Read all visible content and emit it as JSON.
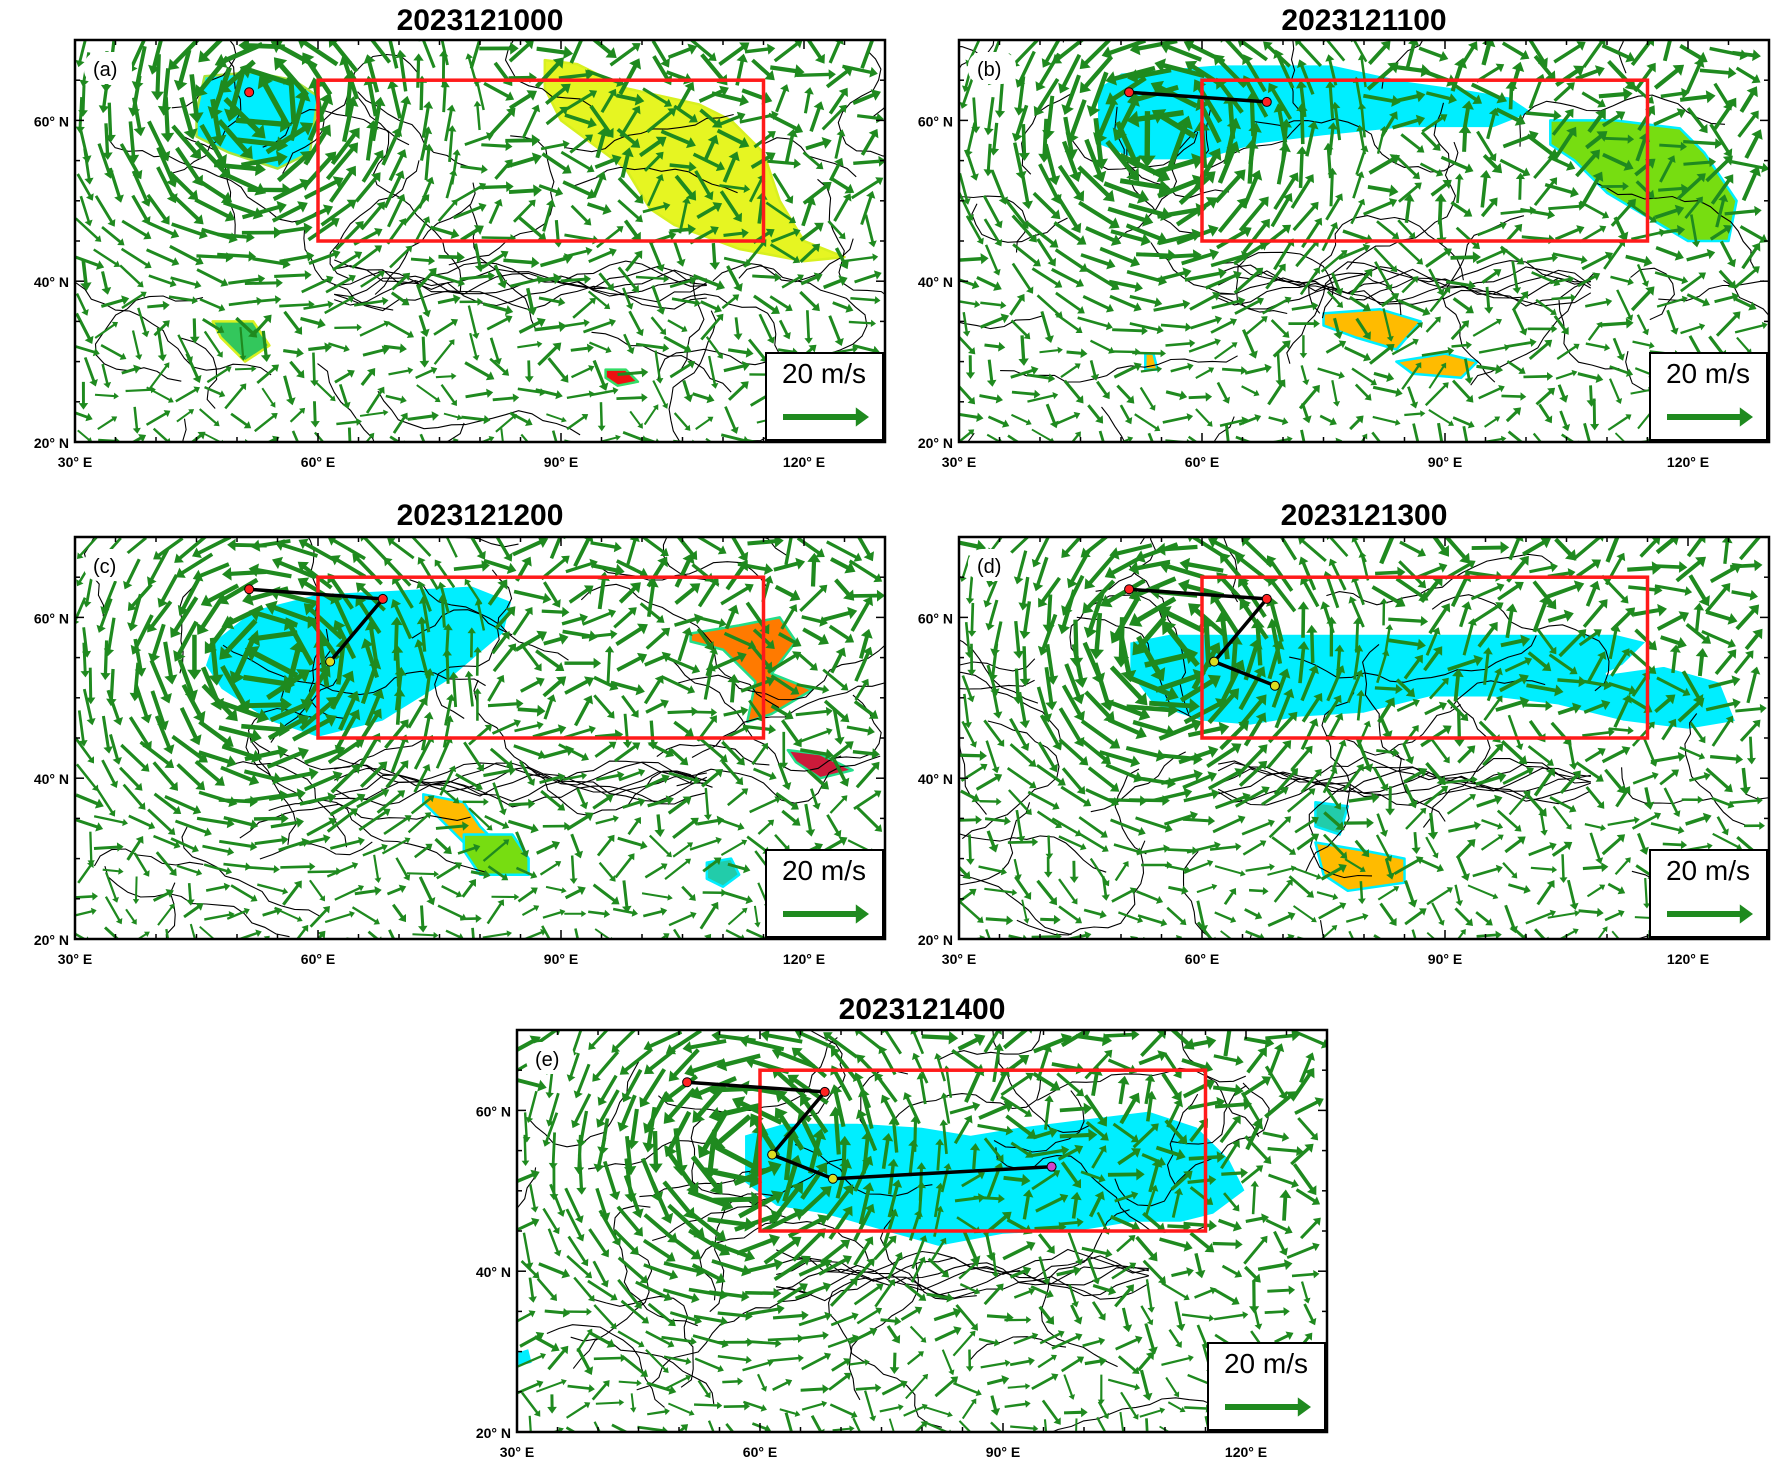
{
  "figure": {
    "arrow_color": "#1f8a1f",
    "domain_box_color": "#ff1a1a",
    "track_color": "#000000",
    "contour_color": "#000000"
  },
  "map": {
    "lon_min": 30,
    "lon_max": 130,
    "lat_min": 20,
    "lat_max": 70,
    "x_ticks": [
      30,
      60,
      90,
      120
    ],
    "x_tick_labels": [
      "30° E",
      "60° E",
      "90° E",
      "120° E"
    ],
    "y_ticks": [
      20,
      40,
      60
    ],
    "y_tick_labels": [
      "20° N",
      "40° N",
      "60° N"
    ],
    "study_box": {
      "lon": [
        60,
        115
      ],
      "lat": [
        45,
        65
      ]
    }
  },
  "reference_vector": {
    "label": "20 m/s",
    "speed": 20
  },
  "panels": [
    {
      "id": "a",
      "letter": "(a)",
      "title": "2023121000",
      "track": [
        {
          "lon": 51.5,
          "lat": 63.5,
          "color": "#ff2222"
        }
      ],
      "regions": [
        {
          "color": "#00eeff",
          "edge": "#a8e23a",
          "poly": [
            [
              45,
              61
            ],
            [
              46,
              65.5
            ],
            [
              52,
              66
            ],
            [
              57,
              65
            ],
            [
              60,
              63
            ],
            [
              59,
              56
            ],
            [
              55,
              54
            ],
            [
              49,
              56
            ],
            [
              45,
              58
            ]
          ]
        },
        {
          "color": "#e6f522",
          "edge": "#d8f020",
          "poly": [
            [
              88,
              67.5
            ],
            [
              92,
              67
            ],
            [
              98,
              64
            ],
            [
              107,
              62
            ],
            [
              111,
              60
            ],
            [
              115,
              56
            ],
            [
              117,
              50
            ],
            [
              120,
              45
            ],
            [
              125,
              43
            ],
            [
              120,
              42.5
            ],
            [
              112,
              44
            ],
            [
              104,
              47
            ],
            [
              101,
              49
            ],
            [
              98,
              54
            ],
            [
              94,
              57
            ],
            [
              90,
              60
            ],
            [
              88,
              64
            ]
          ]
        },
        {
          "color": "#33c75c",
          "edge": "#d8f020",
          "poly": [
            [
              47,
              35
            ],
            [
              52,
              35
            ],
            [
              54,
              32
            ],
            [
              51,
              30
            ],
            [
              48,
              33
            ]
          ]
        },
        {
          "color": "#ee1111",
          "edge": "#33dd66",
          "poly": [
            [
              95.5,
              29
            ],
            [
              98,
              29
            ],
            [
              99.5,
              27.5
            ],
            [
              97,
              27
            ],
            [
              95.5,
              28
            ]
          ]
        }
      ]
    },
    {
      "id": "b",
      "letter": "(b)",
      "title": "2023121100",
      "track": [
        {
          "lon": 51,
          "lat": 63.5,
          "color": "#ff2222"
        },
        {
          "lon": 68,
          "lat": 62.3,
          "color": "#ff2222"
        }
      ],
      "regions": [
        {
          "color": "#00eeff",
          "edge": "#ffffff",
          "poly": [
            [
              47,
              64
            ],
            [
              50,
              66
            ],
            [
              62,
              67
            ],
            [
              76,
              67
            ],
            [
              85,
              65
            ],
            [
              92,
              64
            ],
            [
              98,
              63
            ],
            [
              101,
              61
            ],
            [
              96,
              59
            ],
            [
              85,
              59
            ],
            [
              75,
              58
            ],
            [
              67,
              57
            ],
            [
              60,
              55
            ],
            [
              52,
              55
            ],
            [
              47,
              57
            ]
          ]
        },
        {
          "color": "#77dd11",
          "edge": "#00eeff",
          "poly": [
            [
              103,
              60
            ],
            [
              111,
              60
            ],
            [
              119,
              59
            ],
            [
              122,
              56
            ],
            [
              126,
              50
            ],
            [
              125,
              45
            ],
            [
              120,
              45
            ],
            [
              115,
              48
            ],
            [
              110,
              51
            ],
            [
              106,
              55
            ],
            [
              103,
              57
            ]
          ]
        },
        {
          "color": "#ffbb00",
          "edge": "#00eeff",
          "poly": [
            [
              75,
              36
            ],
            [
              82,
              36.5
            ],
            [
              87,
              35
            ],
            [
              84,
              31.5
            ],
            [
              79,
              33
            ],
            [
              75,
              34.5
            ]
          ]
        },
        {
          "color": "#ffbb00",
          "edge": "#00eeff",
          "poly": [
            [
              84,
              30
            ],
            [
              90,
              31
            ],
            [
              94,
              30
            ],
            [
              92,
              28
            ],
            [
              86,
              28.5
            ]
          ]
        },
        {
          "color": "#ffbb00",
          "edge": "#00eeff",
          "poly": [
            [
              53,
              31
            ],
            [
              54,
              31
            ],
            [
              54.5,
              29
            ],
            [
              53,
              29
            ]
          ]
        }
      ]
    },
    {
      "id": "c",
      "letter": "(c)",
      "title": "2023121200",
      "track": [
        {
          "lon": 51.5,
          "lat": 63.5,
          "color": "#ff2222"
        },
        {
          "lon": 68,
          "lat": 62.3,
          "color": "#ff2222"
        },
        {
          "lon": 61.5,
          "lat": 54.5,
          "color": "#dddd22"
        }
      ],
      "regions": [
        {
          "color": "#00eeff",
          "edge": "#ffffff",
          "poly": [
            [
              47,
              57
            ],
            [
              52,
              61
            ],
            [
              60,
              63
            ],
            [
              70,
              63.5
            ],
            [
              79,
              64
            ],
            [
              84,
              62
            ],
            [
              83,
              58
            ],
            [
              76,
              52
            ],
            [
              68,
              47
            ],
            [
              60,
              45
            ],
            [
              54,
              47
            ],
            [
              48,
              51
            ],
            [
              46,
              54
            ]
          ]
        },
        {
          "color": "#ff7a00",
          "edge": "#22dd88",
          "poly": [
            [
              106,
              58
            ],
            [
              112,
              59
            ],
            [
              117,
              60
            ],
            [
              119,
              57
            ],
            [
              116,
              53
            ],
            [
              121,
              51
            ],
            [
              116,
              48
            ],
            [
              113,
              47
            ],
            [
              114,
              52
            ],
            [
              110,
              56
            ],
            [
              106,
              57
            ]
          ]
        },
        {
          "color": "#cc1a3a",
          "edge": "#22dd88",
          "poly": [
            [
              118,
              43.5
            ],
            [
              122,
              43
            ],
            [
              126,
              41
            ],
            [
              122,
              40
            ],
            [
              119,
              42
            ]
          ]
        },
        {
          "color": "#ffbb00",
          "edge": "#00eeff",
          "poly": [
            [
              73,
              38
            ],
            [
              78,
              37
            ],
            [
              80,
              34
            ],
            [
              83,
              31
            ],
            [
              79,
              31
            ],
            [
              76,
              34
            ],
            [
              73,
              37
            ]
          ]
        },
        {
          "color": "#77dd11",
          "edge": "#00eeff",
          "poly": [
            [
              78,
              33
            ],
            [
              84,
              33
            ],
            [
              86,
              30
            ],
            [
              86,
              28
            ],
            [
              80,
              28
            ],
            [
              78,
              31
            ]
          ]
        },
        {
          "color": "#22ccaa",
          "edge": "#00eeff",
          "poly": [
            [
              108,
              29.5
            ],
            [
              111,
              30
            ],
            [
              112,
              28
            ],
            [
              110,
              26.5
            ],
            [
              108,
              27.5
            ]
          ]
        }
      ]
    },
    {
      "id": "d",
      "letter": "(d)",
      "title": "2023121300",
      "track": [
        {
          "lon": 51,
          "lat": 63.5,
          "color": "#ff2222"
        },
        {
          "lon": 68,
          "lat": 62.3,
          "color": "#ff2222"
        },
        {
          "lon": 61.5,
          "lat": 54.5,
          "color": "#dddd22"
        },
        {
          "lon": 69,
          "lat": 51.5,
          "color": "#dddd22"
        }
      ],
      "regions": [
        {
          "color": "#00eeff",
          "edge": "#ffffff",
          "poly": [
            [
              51,
              57
            ],
            [
              56,
              58
            ],
            [
              65,
              58
            ],
            [
              78,
              58
            ],
            [
              92,
              58
            ],
            [
              104,
              58
            ],
            [
              111,
              58
            ],
            [
              115,
              57
            ],
            [
              112,
              54
            ],
            [
              110,
              53
            ],
            [
              117,
              54
            ],
            [
              124,
              52
            ],
            [
              126,
              47
            ],
            [
              120,
              46
            ],
            [
              112,
              47
            ],
            [
              104,
              49
            ],
            [
              96,
              50
            ],
            [
              88,
              50
            ],
            [
              80,
              48
            ],
            [
              72,
              47.5
            ],
            [
              66,
              46.5
            ],
            [
              60,
              47
            ],
            [
              54,
              49
            ],
            [
              51,
              53
            ]
          ]
        },
        {
          "color": "#ffbb00",
          "edge": "#00eeff",
          "poly": [
            [
              74,
              32
            ],
            [
              80,
              31
            ],
            [
              85,
              30
            ],
            [
              85,
              27
            ],
            [
              78,
              26
            ],
            [
              75,
              28
            ]
          ]
        },
        {
          "color": "#22ccaa",
          "edge": "#00eeff",
          "poly": [
            [
              74,
              37
            ],
            [
              78,
              36.5
            ],
            [
              77,
              33
            ],
            [
              74,
              34
            ]
          ]
        }
      ]
    },
    {
      "id": "e",
      "letter": "(e)",
      "title": "2023121400",
      "track": [
        {
          "lon": 51,
          "lat": 63.5,
          "color": "#ff2222"
        },
        {
          "lon": 68,
          "lat": 62.3,
          "color": "#ff2222"
        },
        {
          "lon": 61.5,
          "lat": 54.5,
          "color": "#dddd22"
        },
        {
          "lon": 69,
          "lat": 51.5,
          "color": "#dddd22"
        },
        {
          "lon": 96,
          "lat": 53,
          "color": "#cc44cc"
        }
      ],
      "regions": [
        {
          "color": "#00eeff",
          "edge": "#ffffff",
          "poly": [
            [
              58,
              57
            ],
            [
              63,
              58.5
            ],
            [
              72,
              58.5
            ],
            [
              80,
              58
            ],
            [
              86,
              57
            ],
            [
              92,
              58
            ],
            [
              100,
              59
            ],
            [
              108,
              60
            ],
            [
              114,
              58
            ],
            [
              118,
              54
            ],
            [
              120,
              50
            ],
            [
              116,
              47
            ],
            [
              112,
              46
            ],
            [
              106,
              46
            ],
            [
              100,
              45
            ],
            [
              90,
              44.5
            ],
            [
              82,
              43
            ],
            [
              75,
              45
            ],
            [
              68,
              47
            ],
            [
              62,
              48
            ],
            [
              58,
              51
            ]
          ]
        },
        {
          "color": "#00eeff",
          "edge": "#ffffff",
          "poly": [
            [
              30,
              30
            ],
            [
              31.5,
              30.5
            ],
            [
              32,
              28.5
            ],
            [
              30,
              28
            ]
          ]
        }
      ]
    }
  ]
}
